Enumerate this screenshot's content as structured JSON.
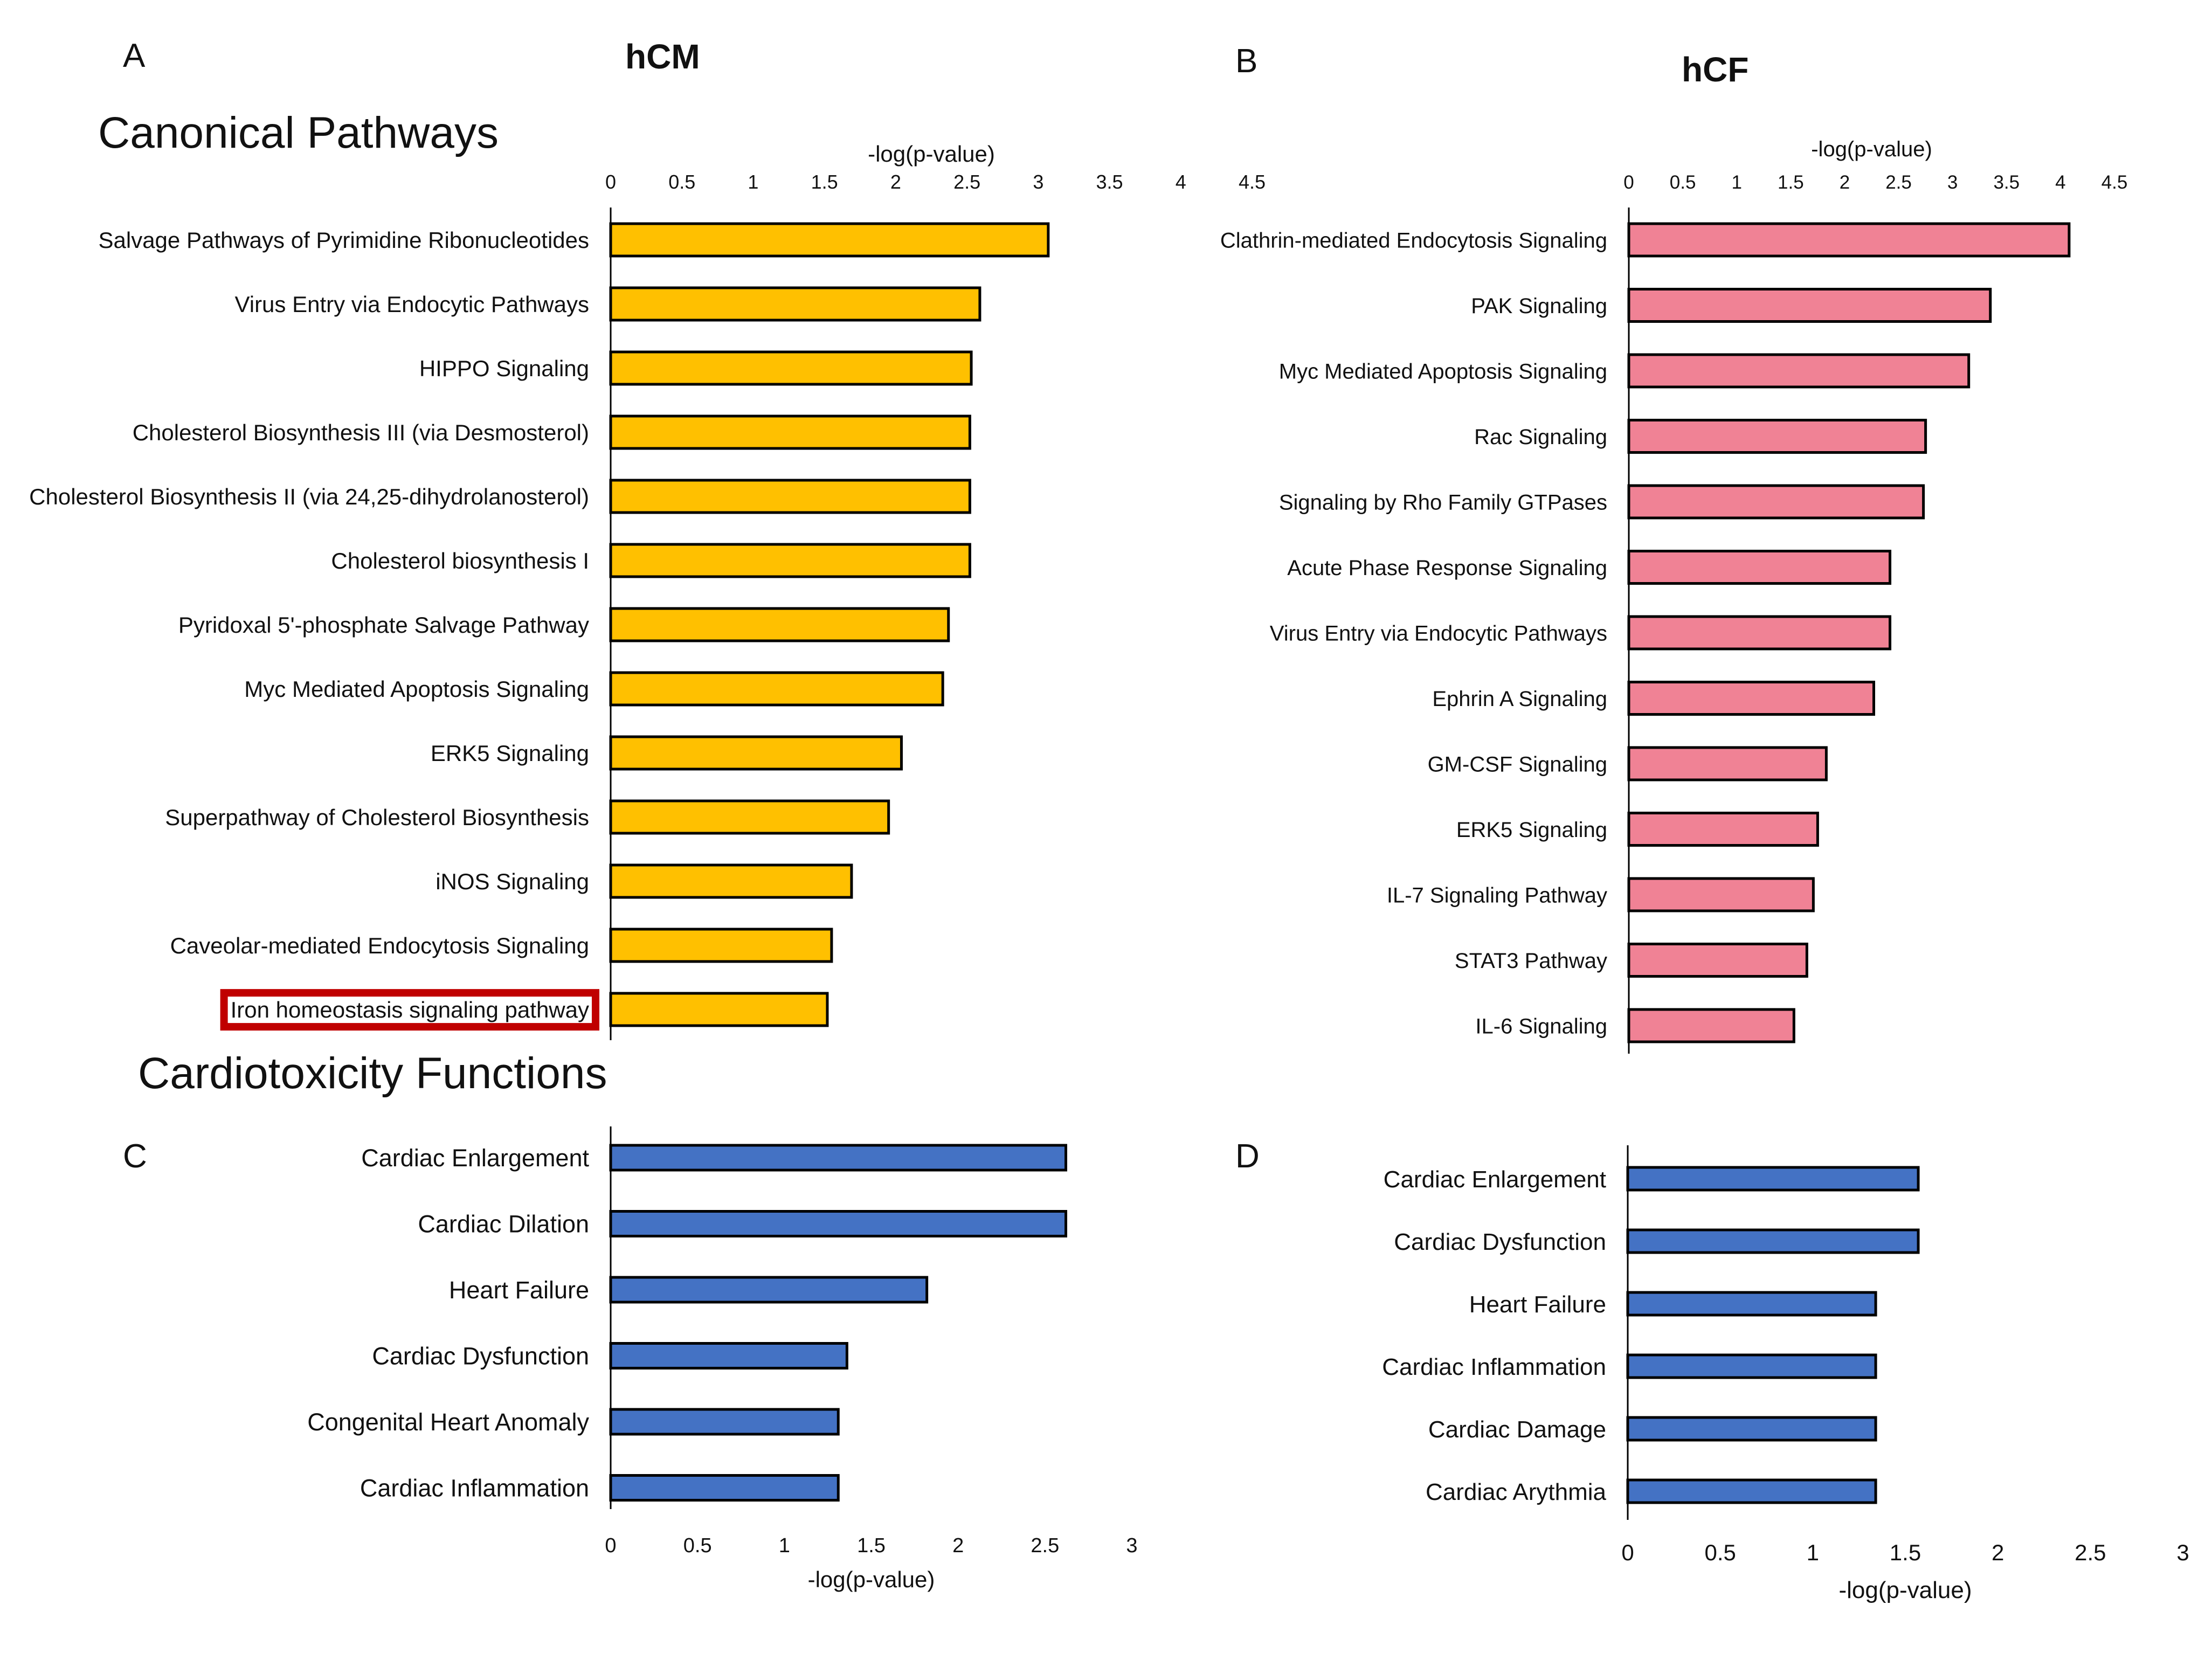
{
  "figure": {
    "panel_labels": [
      "A",
      "B",
      "C",
      "D"
    ],
    "column_titles": [
      "hCM",
      "hCF"
    ],
    "section_titles": [
      "Canonical Pathways",
      "Cardiotoxicity Functions"
    ],
    "colors": {
      "A": "#ffc000",
      "B": "#f08295",
      "C": "#4472c4",
      "D": "#4472c4",
      "highlight_box": "#c00000"
    }
  },
  "chart_data": [
    {
      "panel": "A",
      "type": "bar",
      "orientation": "horizontal",
      "title": "hCM",
      "xlabel": "-log(p-value)",
      "axis_position": "top",
      "xlim": [
        0,
        4.5
      ],
      "xticks": [
        "0",
        "0.5",
        "1",
        "1.5",
        "2",
        "2.5",
        "3",
        "3.5",
        "4",
        "4.5"
      ],
      "categories": [
        "Salvage Pathways of Pyrimidine Ribonucleotides",
        "Virus Entry via Endocytic Pathways",
        "HIPPO Signaling",
        "Cholesterol Biosynthesis III (via Desmosterol)",
        "Cholesterol Biosynthesis II (via 24,25-dihydrolanosterol)",
        "Cholesterol biosynthesis I",
        "Pyridoxal 5'-phosphate Salvage Pathway",
        "Myc Mediated Apoptosis Signaling",
        "ERK5 Signaling",
        "Superpathway of Cholesterol Biosynthesis",
        "iNOS Signaling",
        "Caveolar-mediated Endocytosis Signaling",
        "Iron homeostasis signaling pathway"
      ],
      "values": [
        3.07,
        2.59,
        2.53,
        2.52,
        2.52,
        2.52,
        2.37,
        2.33,
        2.04,
        1.95,
        1.69,
        1.55,
        1.52
      ],
      "highlighted_category": "Iron homeostasis signaling pathway"
    },
    {
      "panel": "B",
      "type": "bar",
      "orientation": "horizontal",
      "title": "hCF",
      "xlabel": "-log(p-value)",
      "axis_position": "top",
      "xlim": [
        0,
        4.5
      ],
      "xticks": [
        "0",
        "0.5",
        "1",
        "1.5",
        "2",
        "2.5",
        "3",
        "3.5",
        "4",
        "4.5"
      ],
      "categories": [
        "Clathrin-mediated Endocytosis Signaling",
        "PAK Signaling",
        "Myc Mediated Apoptosis Signaling",
        "Rac Signaling",
        "Signaling by Rho Family GTPases",
        "Acute Phase Response Signaling",
        "Virus Entry via Endocytic Pathways",
        "Ephrin A Signaling",
        "GM-CSF Signaling",
        "ERK5 Signaling",
        "IL-7 Signaling Pathway",
        "STAT3 Pathway",
        "IL-6 Signaling"
      ],
      "values": [
        4.08,
        3.35,
        3.15,
        2.75,
        2.73,
        2.42,
        2.42,
        2.27,
        1.83,
        1.75,
        1.71,
        1.65,
        1.53
      ]
    },
    {
      "panel": "C",
      "type": "bar",
      "orientation": "horizontal",
      "xlabel": "-log(p-value)",
      "axis_position": "bottom",
      "xlim": [
        0,
        3
      ],
      "xticks": [
        "0",
        "0.5",
        "1",
        "1.5",
        "2",
        "2.5",
        "3"
      ],
      "categories": [
        "Cardiac Enlargement",
        "Cardiac Dilation",
        "Heart Failure",
        "Cardiac Dysfunction",
        "Congenital Heart Anomaly",
        "Cardiac Inflammation"
      ],
      "values": [
        2.62,
        2.62,
        1.82,
        1.36,
        1.31,
        1.31
      ]
    },
    {
      "panel": "D",
      "type": "bar",
      "orientation": "horizontal",
      "xlabel": "-log(p-value)",
      "axis_position": "bottom",
      "xlim": [
        0,
        3
      ],
      "xticks": [
        "0",
        "0.5",
        "1",
        "1.5",
        "2",
        "2.5",
        "3"
      ],
      "categories": [
        "Cardiac Enlargement",
        "Cardiac Dysfunction",
        "Heart Failure",
        "Cardiac Inflammation",
        "Cardiac Damage",
        "Cardiac Arythmia"
      ],
      "values": [
        1.57,
        1.57,
        1.34,
        1.34,
        1.34,
        1.34
      ]
    }
  ]
}
